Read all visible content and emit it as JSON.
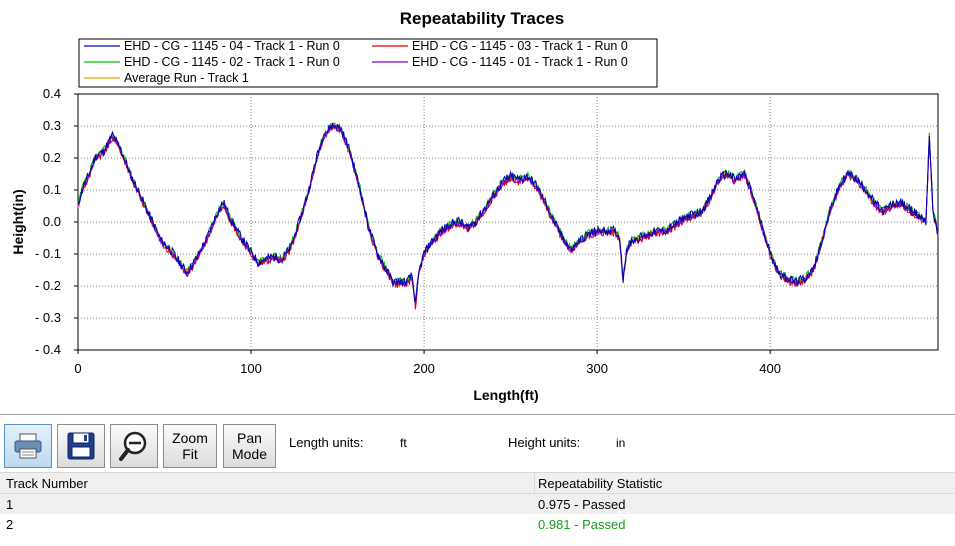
{
  "chart_data": {
    "type": "line",
    "title": "Repeatability Traces",
    "xlabel": "Length(ft)",
    "ylabel": "Height(in)",
    "xlim": [
      0,
      497
    ],
    "ylim": [
      -0.4,
      0.4
    ],
    "x_ticks": [
      0,
      100,
      200,
      300,
      400
    ],
    "y_ticks": [
      0.4,
      0.3,
      0.2,
      0.1,
      0.0,
      -0.1,
      -0.2,
      -0.3,
      -0.4
    ],
    "y_tick_labels": [
      "0.4",
      "0.3",
      "0.2",
      "0.1",
      "0.0",
      "- 0.1",
      "- 0.2",
      "- 0.3",
      "- 0.4"
    ],
    "grid": true,
    "grid_style": "dotted",
    "legend_position": "top-left",
    "base_profile": [
      [
        0,
        0.05
      ],
      [
        3,
        0.11
      ],
      [
        6,
        0.14
      ],
      [
        10,
        0.2
      ],
      [
        15,
        0.22
      ],
      [
        20,
        0.27
      ],
      [
        25,
        0.22
      ],
      [
        30,
        0.15
      ],
      [
        36,
        0.08
      ],
      [
        42,
        0.01
      ],
      [
        48,
        -0.06
      ],
      [
        55,
        -0.1
      ],
      [
        60,
        -0.14
      ],
      [
        63,
        -0.16
      ],
      [
        68,
        -0.12
      ],
      [
        74,
        -0.06
      ],
      [
        80,
        0.02
      ],
      [
        84,
        0.06
      ],
      [
        88,
        0.01
      ],
      [
        93,
        -0.04
      ],
      [
        98,
        -0.08
      ],
      [
        104,
        -0.13
      ],
      [
        108,
        -0.12
      ],
      [
        113,
        -0.11
      ],
      [
        118,
        -0.12
      ],
      [
        123,
        -0.08
      ],
      [
        128,
        0.0
      ],
      [
        133,
        0.09
      ],
      [
        138,
        0.2
      ],
      [
        142,
        0.27
      ],
      [
        147,
        0.3
      ],
      [
        152,
        0.29
      ],
      [
        157,
        0.22
      ],
      [
        163,
        0.1
      ],
      [
        168,
        -0.02
      ],
      [
        173,
        -0.1
      ],
      [
        178,
        -0.15
      ],
      [
        182,
        -0.19
      ],
      [
        186,
        -0.19
      ],
      [
        190,
        -0.19
      ],
      [
        193,
        -0.17
      ],
      [
        195,
        -0.26
      ],
      [
        197,
        -0.16
      ],
      [
        200,
        -0.1
      ],
      [
        205,
        -0.06
      ],
      [
        210,
        -0.03
      ],
      [
        215,
        -0.01
      ],
      [
        220,
        0.0
      ],
      [
        225,
        -0.02
      ],
      [
        230,
        0.0
      ],
      [
        235,
        0.04
      ],
      [
        240,
        0.08
      ],
      [
        245,
        0.12
      ],
      [
        250,
        0.14
      ],
      [
        255,
        0.13
      ],
      [
        260,
        0.14
      ],
      [
        265,
        0.11
      ],
      [
        270,
        0.06
      ],
      [
        275,
        0.0
      ],
      [
        280,
        -0.05
      ],
      [
        285,
        -0.09
      ],
      [
        290,
        -0.06
      ],
      [
        295,
        -0.04
      ],
      [
        300,
        -0.03
      ],
      [
        305,
        -0.03
      ],
      [
        310,
        -0.03
      ],
      [
        313,
        -0.05
      ],
      [
        315,
        -0.18
      ],
      [
        317,
        -0.09
      ],
      [
        320,
        -0.06
      ],
      [
        325,
        -0.05
      ],
      [
        330,
        -0.04
      ],
      [
        335,
        -0.03
      ],
      [
        340,
        -0.03
      ],
      [
        345,
        -0.01
      ],
      [
        350,
        0.01
      ],
      [
        355,
        0.02
      ],
      [
        360,
        0.03
      ],
      [
        365,
        0.07
      ],
      [
        370,
        0.13
      ],
      [
        375,
        0.15
      ],
      [
        380,
        0.13
      ],
      [
        385,
        0.15
      ],
      [
        390,
        0.08
      ],
      [
        395,
        -0.01
      ],
      [
        400,
        -0.1
      ],
      [
        405,
        -0.16
      ],
      [
        410,
        -0.18
      ],
      [
        415,
        -0.19
      ],
      [
        420,
        -0.18
      ],
      [
        425,
        -0.15
      ],
      [
        430,
        -0.06
      ],
      [
        435,
        0.04
      ],
      [
        440,
        0.11
      ],
      [
        445,
        0.15
      ],
      [
        450,
        0.13
      ],
      [
        455,
        0.1
      ],
      [
        460,
        0.06
      ],
      [
        465,
        0.03
      ],
      [
        470,
        0.05
      ],
      [
        475,
        0.06
      ],
      [
        480,
        0.04
      ],
      [
        485,
        0.02
      ],
      [
        490,
        0.0
      ],
      [
        492,
        0.27
      ],
      [
        494,
        0.04
      ],
      [
        497,
        -0.04
      ]
    ],
    "series": [
      {
        "name": "EHD - CG - 1145 - 04 - Track 1 - Run 0",
        "color": "#0000c0",
        "y_offset": 0.003,
        "noise": 0.014,
        "seed": 11
      },
      {
        "name": "EHD - CG - 1145 - 03 - Track 1 - Run 0",
        "color": "#e00000",
        "y_offset": -0.004,
        "noise": 0.011,
        "seed": 23
      },
      {
        "name": "EHD - CG - 1145 - 02 - Track 1 - Run 0",
        "color": "#00c000",
        "y_offset": 0.006,
        "noise": 0.01,
        "seed": 37
      },
      {
        "name": "EHD - CG - 1145 - 01 - Track 1 - Run 0",
        "color": "#8000c0",
        "y_offset": -0.002,
        "noise": 0.01,
        "seed": 41
      },
      {
        "name": "Average Run - Track 1",
        "color": "#e0a000",
        "y_offset": 0.0,
        "noise": 0.004,
        "seed": 53
      }
    ]
  },
  "toolbar": {
    "zoom_fit_line1": "Zoom",
    "zoom_fit_line2": "Fit",
    "pan_mode_line1": "Pan",
    "pan_mode_line2": "Mode",
    "length_units_label": "Length units:",
    "length_units_value": "ft",
    "height_units_label": "Height units:",
    "height_units_value": "in",
    "icons": [
      "printer-icon",
      "save-disk-icon",
      "zoom-out-magnifier-icon"
    ]
  },
  "stats_table": {
    "headers": [
      "Track Number",
      "Repeatability Statistic"
    ],
    "rows": [
      {
        "track": "1",
        "statistic": "0.975 - Passed",
        "color": "#000000"
      },
      {
        "track": "2",
        "statistic": "0.981 - Passed",
        "color": "#1a9a1a"
      }
    ]
  }
}
